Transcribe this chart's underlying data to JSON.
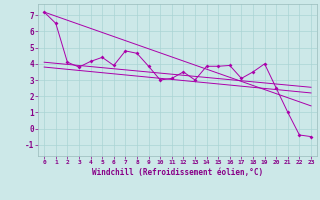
{
  "xlabel": "Windchill (Refroidissement éolien,°C)",
  "bg_color": "#cce8e8",
  "line_color": "#aa00aa",
  "xlim": [
    -0.5,
    23.5
  ],
  "ylim": [
    -1.7,
    7.7
  ],
  "xticks": [
    0,
    1,
    2,
    3,
    4,
    5,
    6,
    7,
    8,
    9,
    10,
    11,
    12,
    13,
    14,
    15,
    16,
    17,
    18,
    19,
    20,
    21,
    22,
    23
  ],
  "yticks": [
    -1,
    0,
    1,
    2,
    3,
    4,
    5,
    6,
    7
  ],
  "main_x": [
    0,
    1,
    2,
    3,
    4,
    5,
    6,
    7,
    8,
    9,
    10,
    11,
    12,
    13,
    14,
    15,
    16,
    17,
    18,
    19,
    20,
    21,
    22,
    23
  ],
  "main_y": [
    7.2,
    6.5,
    4.1,
    3.8,
    4.15,
    4.4,
    3.9,
    4.8,
    4.65,
    3.85,
    3.0,
    3.1,
    3.5,
    3.0,
    3.85,
    3.85,
    3.9,
    3.1,
    3.5,
    4.0,
    2.5,
    1.0,
    -0.4,
    -0.5
  ],
  "trend1_x": [
    0,
    23
  ],
  "trend1_y": [
    7.2,
    1.4
  ],
  "trend2_x": [
    0,
    23
  ],
  "trend2_y": [
    4.1,
    2.55
  ],
  "trend3_x": [
    0,
    23
  ],
  "trend3_y": [
    3.8,
    2.2
  ],
  "grid_color": "#aad4d4",
  "tick_color": "#880088",
  "xlabel_color": "#880088"
}
